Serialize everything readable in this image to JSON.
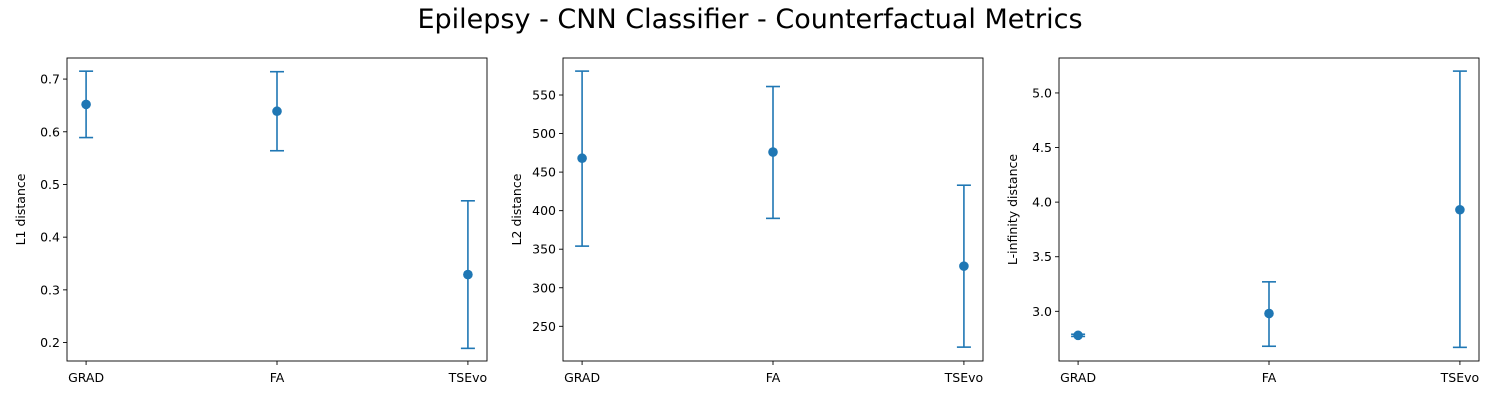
{
  "figure": {
    "title": "Epilepsy - CNN Classifier - Counterfactual Metrics",
    "marker_color": "#1f77b4"
  },
  "chart_data": [
    {
      "type": "scatter",
      "errorbars": true,
      "categories": [
        "GRAD",
        "FA",
        "TSEvo"
      ],
      "values": [
        0.652,
        0.639,
        0.329
      ],
      "lower": [
        0.589,
        0.564,
        0.189
      ],
      "upper": [
        0.715,
        0.714,
        0.469
      ],
      "ylabel": "L1 distance",
      "ylim": [
        0.165,
        0.74
      ],
      "yticks": [
        0.2,
        0.3,
        0.4,
        0.5,
        0.6,
        0.7
      ],
      "ytick_labels": [
        "0.2",
        "0.3",
        "0.4",
        "0.5",
        "0.6",
        "0.7"
      ]
    },
    {
      "type": "scatter",
      "errorbars": true,
      "categories": [
        "GRAD",
        "FA",
        "TSEvo"
      ],
      "values": [
        468,
        476,
        328
      ],
      "lower": [
        354,
        390,
        223
      ],
      "upper": [
        581,
        561,
        433
      ],
      "ylabel": "L2 distance",
      "ylim": [
        205,
        598
      ],
      "yticks": [
        250,
        300,
        350,
        400,
        450,
        500,
        550
      ],
      "ytick_labels": [
        "250",
        "300",
        "350",
        "400",
        "450",
        "500",
        "550"
      ]
    },
    {
      "type": "scatter",
      "errorbars": true,
      "categories": [
        "GRAD",
        "FA",
        "TSEvo"
      ],
      "values": [
        2.78,
        2.98,
        3.93
      ],
      "lower": [
        2.77,
        2.68,
        2.67
      ],
      "upper": [
        2.79,
        3.27,
        5.2
      ],
      "ylabel": "L-infinity distance",
      "ylim": [
        2.545,
        5.32
      ],
      "yticks": [
        3.0,
        3.5,
        4.0,
        4.5,
        5.0
      ],
      "ytick_labels": [
        "3.0",
        "3.5",
        "4.0",
        "4.5",
        "5.0"
      ]
    }
  ]
}
